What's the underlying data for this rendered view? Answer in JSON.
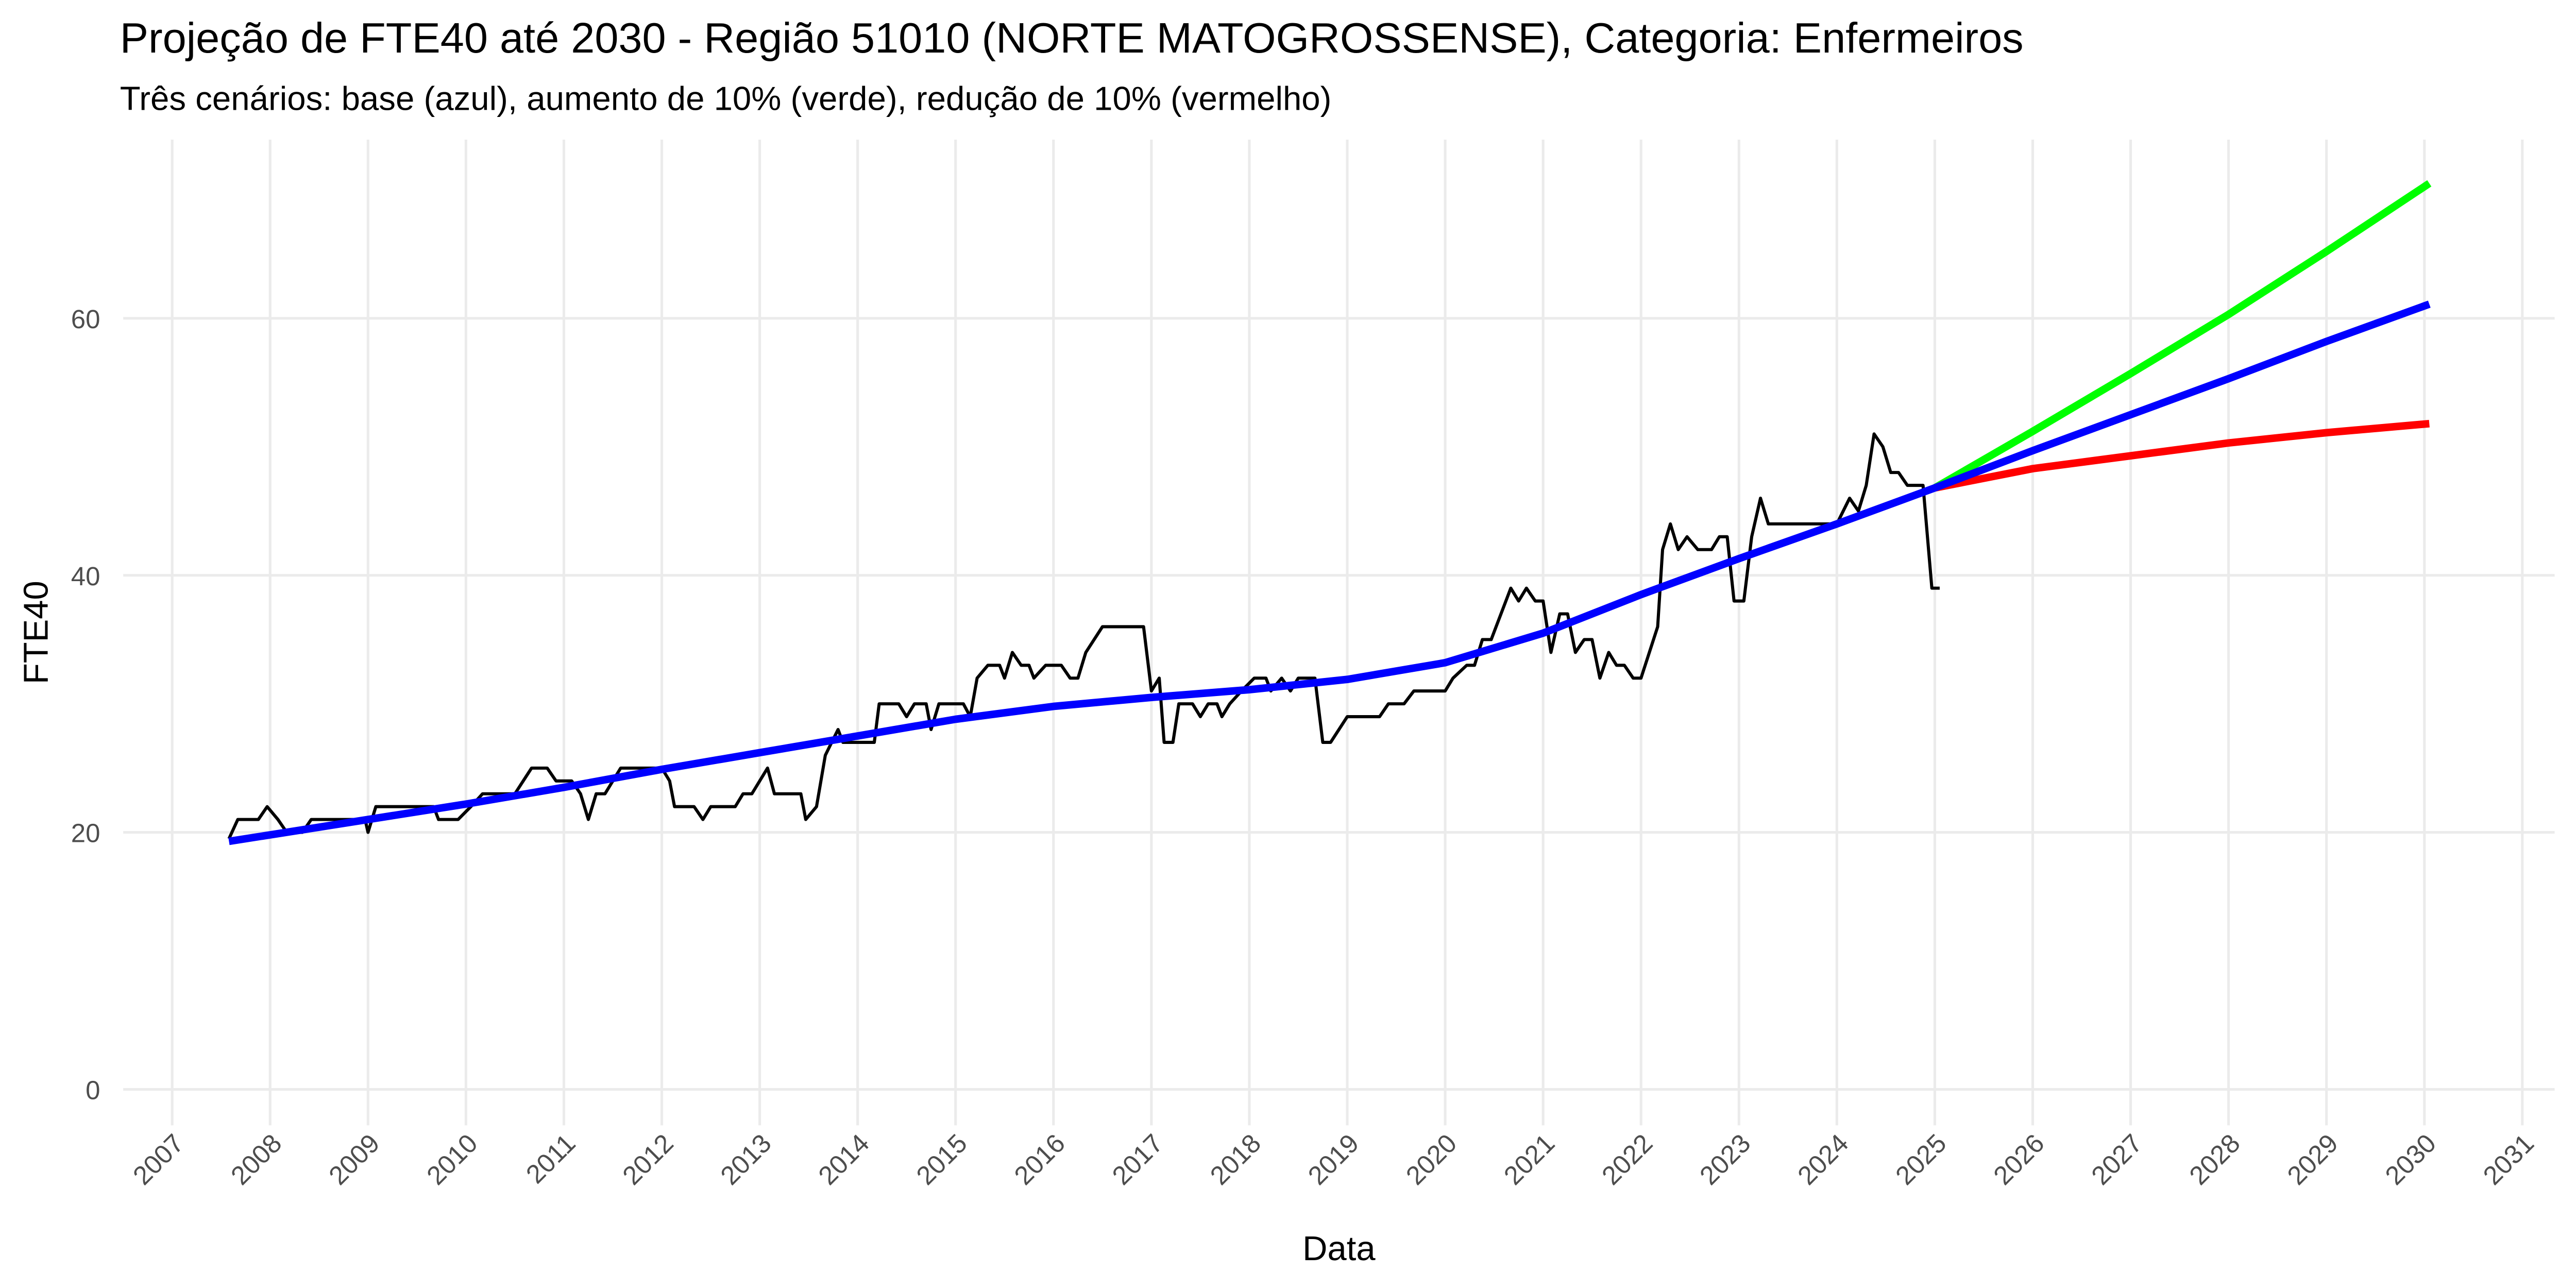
{
  "chart_data": {
    "type": "line",
    "title": "Projeção de FTE40 até 2030 - Região 51010 (NORTE MATOGROSSENSE), Categoria: Enfermeiros",
    "subtitle": "Três cenários: base (azul), aumento de 10% (verde), redução de 10% (vermelho)",
    "x_label": "Data",
    "y_label": "FTE40",
    "xlim": [
      2006.5,
      2031.33
    ],
    "xticks": [
      2007,
      2008,
      2009,
      2010,
      2011,
      2012,
      2013,
      2014,
      2015,
      2016,
      2017,
      2018,
      2019,
      2020,
      2021,
      2022,
      2023,
      2024,
      2025,
      2026,
      2027,
      2028,
      2029,
      2030,
      2031
    ],
    "ylim": [
      -2.8,
      73.9
    ],
    "yticks": [
      0,
      20,
      40,
      60
    ],
    "grid": true,
    "series": [
      {
        "color": "#000000",
        "x": [
          2007.58,
          2007.67,
          2007.88,
          2007.97,
          2008.08,
          2008.17,
          2008.33,
          2008.42,
          2008.83,
          2008.97,
          2009.0,
          2009.08,
          2009.58,
          2009.67,
          2009.72,
          2009.92,
          2010.05,
          2010.17,
          2010.5,
          2010.67,
          2010.83,
          2010.92,
          2011.08,
          2011.17,
          2011.25,
          2011.33,
          2011.42,
          2011.58,
          2012.0,
          2012.08,
          2012.13,
          2012.33,
          2012.42,
          2012.5,
          2012.75,
          2012.83,
          2012.92,
          2013.08,
          2013.15,
          2013.42,
          2013.47,
          2013.58,
          2013.67,
          2013.8,
          2013.85,
          2014.17,
          2014.22,
          2014.42,
          2014.5,
          2014.58,
          2014.7,
          2014.75,
          2014.83,
          2015.08,
          2015.15,
          2015.22,
          2015.33,
          2015.45,
          2015.5,
          2015.58,
          2015.67,
          2015.75,
          2015.8,
          2015.92,
          2016.08,
          2016.17,
          2016.25,
          2016.33,
          2016.5,
          2016.92,
          2017.0,
          2017.08,
          2017.13,
          2017.22,
          2017.28,
          2017.42,
          2017.5,
          2017.58,
          2017.67,
          2017.72,
          2017.8,
          2017.92,
          2018.05,
          2018.17,
          2018.22,
          2018.33,
          2018.42,
          2018.5,
          2018.67,
          2018.75,
          2018.83,
          2019.0,
          2019.33,
          2019.42,
          2019.58,
          2019.68,
          2020.0,
          2020.08,
          2020.22,
          2020.3,
          2020.38,
          2020.47,
          2020.67,
          2020.75,
          2020.83,
          2020.92,
          2021.0,
          2021.08,
          2021.17,
          2021.25,
          2021.33,
          2021.42,
          2021.5,
          2021.58,
          2021.67,
          2021.75,
          2021.83,
          2021.92,
          2022.0,
          2022.17,
          2022.22,
          2022.3,
          2022.38,
          2022.47,
          2022.58,
          2022.72,
          2022.8,
          2022.88,
          2022.95,
          2023.05,
          2023.13,
          2023.22,
          2023.3,
          2024.0,
          2024.13,
          2024.22,
          2024.3,
          2024.38,
          2024.47,
          2024.55,
          2024.63,
          2024.72,
          2024.88,
          2024.97,
          2025.05
        ],
        "values": [
          19.5,
          21,
          21,
          22,
          21,
          20,
          20,
          21,
          21,
          21,
          20,
          22,
          22,
          22,
          21,
          21,
          22,
          23,
          23,
          25,
          25,
          24,
          24,
          23,
          21,
          23,
          23,
          25,
          25,
          24,
          22,
          22,
          21,
          22,
          22,
          23,
          23,
          25,
          23,
          23,
          21,
          22,
          26,
          28,
          27,
          27,
          30,
          30,
          29,
          30,
          30,
          28,
          30,
          30,
          29,
          32,
          33,
          33,
          32,
          34,
          33,
          33,
          32,
          33,
          33,
          32,
          32,
          34,
          36,
          36,
          31,
          32,
          27,
          27,
          30,
          30,
          29,
          30,
          30,
          29,
          30,
          31,
          32,
          32,
          31,
          32,
          31,
          32,
          32,
          27,
          27,
          29,
          29,
          30,
          30,
          31,
          31,
          32,
          33,
          33,
          35,
          35,
          39,
          38,
          39,
          38,
          38,
          34,
          37,
          37,
          34,
          35,
          35,
          32,
          34,
          33,
          33,
          32,
          32,
          36,
          42,
          44,
          42,
          43,
          42,
          42,
          43,
          43,
          38,
          38,
          43,
          46,
          44,
          44,
          46,
          45,
          47,
          51,
          50,
          48,
          48,
          47,
          47,
          39,
          39
        ]
      },
      {
        "color": "#00ff00",
        "x": [
          2025.0,
          2026.0,
          2027.0,
          2028.0,
          2029.0,
          2030.05
        ],
        "values": [
          46.8,
          51.2,
          55.7,
          60.3,
          65.2,
          70.5
        ]
      },
      {
        "color": "#ff0000",
        "x": [
          2025.0,
          2026.0,
          2027.0,
          2028.0,
          2029.0,
          2030.05
        ],
        "values": [
          46.8,
          48.3,
          49.3,
          50.3,
          51.1,
          51.8
        ]
      },
      {
        "color": "#0000ff",
        "x": [
          2007.58,
          2009.0,
          2010.0,
          2011.0,
          2012.0,
          2013.0,
          2014.0,
          2015.0,
          2016.0,
          2017.0,
          2018.0,
          2019.0,
          2020.0,
          2021.0,
          2022.0,
          2023.0,
          2024.0,
          2025.0,
          2026.0,
          2027.0,
          2028.0,
          2029.0,
          2030.05
        ],
        "values": [
          19.3,
          21.0,
          22.2,
          23.5,
          24.9,
          26.2,
          27.5,
          28.8,
          29.8,
          30.5,
          31.1,
          31.9,
          33.2,
          35.5,
          38.5,
          41.3,
          44.0,
          46.8,
          49.7,
          52.5,
          55.3,
          58.2,
          61.1
        ]
      }
    ]
  }
}
